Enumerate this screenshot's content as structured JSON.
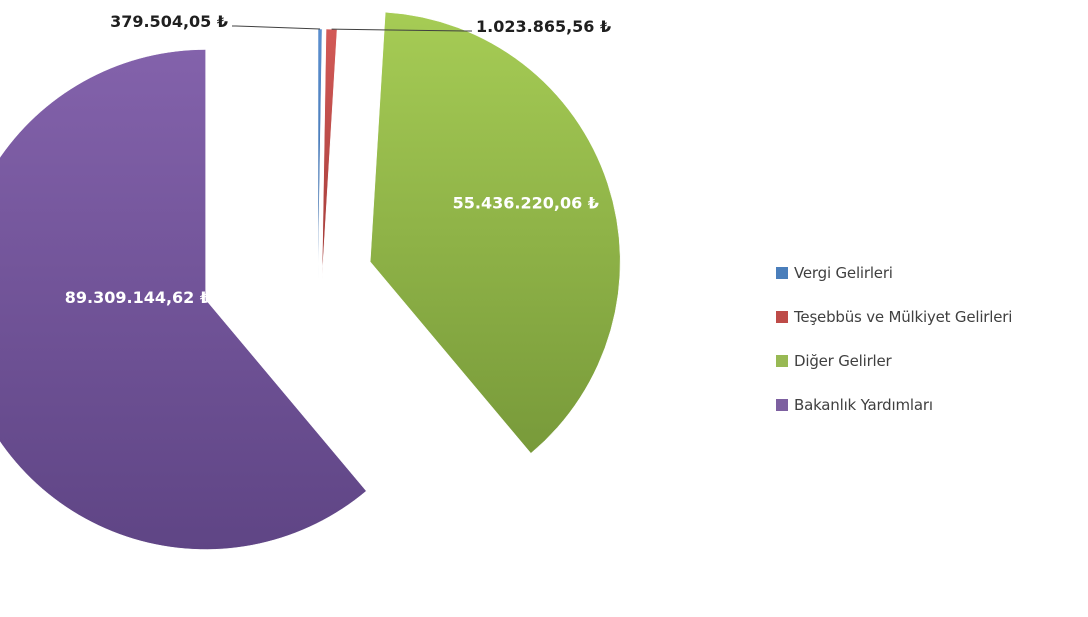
{
  "chart_data": {
    "type": "pie",
    "exploded": true,
    "categories": [
      "Vergi Gelirleri",
      "Teşebbüs ve Mülkiyet Gelirleri",
      "Diğer Gelirler",
      "Bakanlık Yardımları"
    ],
    "values": [
      379504.05,
      1023865.56,
      55436220.06,
      89309144.62
    ],
    "data_labels": [
      "379.504,05 ₺",
      "1.023.865,56 ₺",
      "55.436.220,06 ₺",
      "89.309.144,62 ₺"
    ],
    "colors": [
      "#4a7ebb",
      "#be4b48",
      "#98b954",
      "#7d60a0"
    ],
    "legend_position": "right",
    "title": ""
  }
}
